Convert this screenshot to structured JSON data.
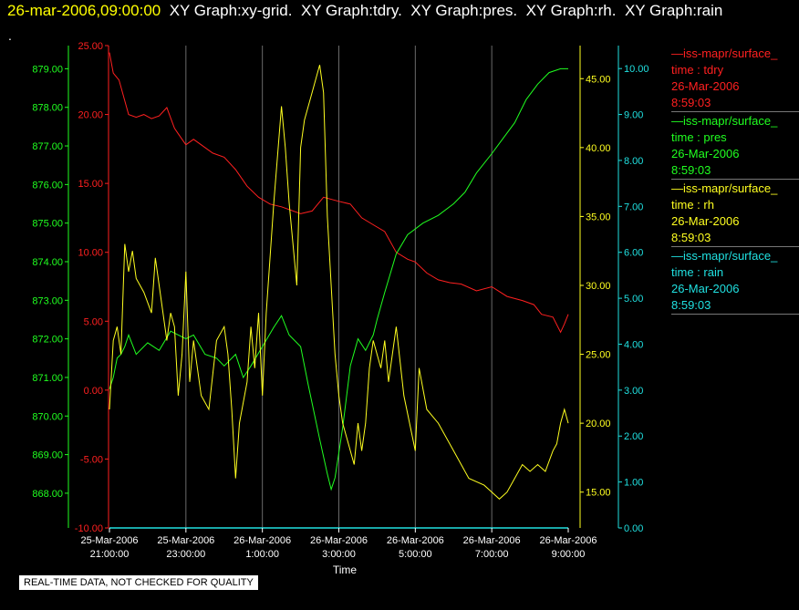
{
  "header": {
    "timestamp": "26-mar-2006,09:00:00",
    "graphs": [
      "XY Graph:xy-grid.",
      "XY Graph:tdry.",
      "XY Graph:pres.",
      "XY Graph:rh.",
      "XY Graph:rain"
    ]
  },
  "dot": ".",
  "disclaimer": "REAL-TIME DATA, NOT CHECKED FOR QUALITY",
  "legend": [
    {
      "line": "iss-mapr/surface_",
      "var": "time : tdry",
      "date": "26-Mar-2006",
      "time": "8:59:03",
      "color": "#ff2020"
    },
    {
      "line": "iss-mapr/surface_",
      "var": "time : pres",
      "date": "26-Mar-2006",
      "time": "8:59:03",
      "color": "#20ff20"
    },
    {
      "line": "iss-mapr/surface_",
      "var": "time : rh",
      "date": "26-Mar-2006",
      "time": "8:59:03",
      "color": "#ffff20"
    },
    {
      "line": "iss-mapr/surface_",
      "var": "time : rain",
      "date": "26-Mar-2006",
      "time": "8:59:03",
      "color": "#20e0e0"
    }
  ],
  "chart_data": {
    "type": "line",
    "xlabel": "Time",
    "x_ticks": [
      {
        "date": "25-Mar-2006",
        "time": "21:00:00",
        "h": 0
      },
      {
        "date": "25-Mar-2006",
        "time": "23:00:00",
        "h": 2
      },
      {
        "date": "26-Mar-2006",
        "time": "1:00:00",
        "h": 4
      },
      {
        "date": "26-Mar-2006",
        "time": "3:00:00",
        "h": 6
      },
      {
        "date": "26-Mar-2006",
        "time": "5:00:00",
        "h": 8
      },
      {
        "date": "26-Mar-2006",
        "time": "7:00:00",
        "h": 10
      },
      {
        "date": "26-Mar-2006",
        "time": "9:00:00",
        "h": 12
      }
    ],
    "xlim": [
      0,
      12
    ],
    "grid": "vertical",
    "axes": {
      "tdry": {
        "color": "#ff2020",
        "ylim": [
          -10,
          25
        ],
        "ticks": [
          "-10.00",
          "-5.00",
          "0.00",
          "5.00",
          "10.00",
          "15.00",
          "20.00",
          "25.00"
        ]
      },
      "pres": {
        "color": "#20ff20",
        "ylim": [
          867.1,
          879.6
        ],
        "ticks": [
          "868.00",
          "869.00",
          "870.00",
          "871.00",
          "872.00",
          "873.00",
          "874.00",
          "875.00",
          "876.00",
          "877.00",
          "878.00",
          "879.00"
        ]
      },
      "rh": {
        "color": "#ffff20",
        "ylim": [
          12.4,
          47.4
        ],
        "ticks": [
          "15.00",
          "20.00",
          "25.00",
          "30.00",
          "35.00",
          "40.00",
          "45.00"
        ]
      },
      "rain": {
        "color": "#20e0e0",
        "ylim": [
          0,
          10.5
        ],
        "ticks": [
          "0.00",
          "1.00",
          "2.00",
          "3.00",
          "4.00",
          "5.00",
          "6.00",
          "7.00",
          "8.00",
          "9.00",
          "10.00"
        ]
      }
    },
    "series": [
      {
        "key": "tdry",
        "x": [
          0,
          0.1,
          0.25,
          0.4,
          0.5,
          0.7,
          0.9,
          1.1,
          1.3,
          1.5,
          1.7,
          1.8,
          2.0,
          2.2,
          2.4,
          2.7,
          3.0,
          3.3,
          3.6,
          3.9,
          4.2,
          4.5,
          5.0,
          5.3,
          5.6,
          6.0,
          6.3,
          6.6,
          6.9,
          7.2,
          7.5,
          7.8,
          8.0,
          8.3,
          8.6,
          8.9,
          9.2,
          9.6,
          10.0,
          10.4,
          10.8,
          11.1,
          11.3,
          11.6,
          11.8,
          11.9,
          12.0
        ],
        "y": [
          24.5,
          23,
          22.5,
          21,
          20,
          19.8,
          20,
          19.7,
          19.9,
          20.5,
          19,
          18.6,
          17.8,
          18.2,
          17.8,
          17.2,
          16.9,
          16,
          14.8,
          14,
          13.5,
          13.3,
          12.8,
          13,
          14,
          13.7,
          13.5,
          12.5,
          12,
          11.5,
          10,
          9.5,
          9.3,
          8.5,
          8,
          7.8,
          7.7,
          7.2,
          7.5,
          6.8,
          6.5,
          6.2,
          5.5,
          5.3,
          4.2,
          4.8,
          5.5
        ]
      },
      {
        "key": "pres",
        "x": [
          0,
          0.1,
          0.2,
          0.3,
          0.4,
          0.5,
          0.7,
          1.0,
          1.3,
          1.6,
          2.0,
          2.2,
          2.5,
          2.8,
          3.0,
          3.3,
          3.5,
          3.7,
          4.0,
          4.3,
          4.5,
          4.7,
          5.0,
          5.2,
          5.5,
          5.7,
          5.8,
          5.9,
          6.1,
          6.3,
          6.5,
          6.7,
          6.9,
          7.0,
          7.2,
          7.5,
          7.8,
          8.2,
          8.6,
          9.0,
          9.3,
          9.6,
          10.0,
          10.3,
          10.6,
          10.9,
          11.2,
          11.5,
          11.8,
          12.0
        ],
        "y": [
          870.7,
          871,
          871.5,
          871.6,
          871.8,
          872.1,
          871.6,
          871.9,
          871.7,
          872.2,
          872,
          872.1,
          871.6,
          871.5,
          871.3,
          871.6,
          871,
          871.3,
          871.8,
          872.3,
          872.6,
          872.1,
          871.8,
          870.8,
          869.4,
          868.5,
          868.1,
          868.4,
          869.7,
          871.3,
          872,
          871.7,
          872.1,
          872.5,
          873.2,
          874.2,
          874.7,
          875,
          875.2,
          875.5,
          875.8,
          876.3,
          876.8,
          877.2,
          877.6,
          878.2,
          878.6,
          878.9,
          879,
          879
        ]
      },
      {
        "key": "rh",
        "x": [
          0,
          0.1,
          0.2,
          0.3,
          0.4,
          0.5,
          0.6,
          0.7,
          0.9,
          1.1,
          1.2,
          1.3,
          1.5,
          1.6,
          1.7,
          1.8,
          1.9,
          2.0,
          2.1,
          2.2,
          2.4,
          2.6,
          2.8,
          3.0,
          3.1,
          3.2,
          3.3,
          3.4,
          3.6,
          3.7,
          3.8,
          3.9,
          4.0,
          4.1,
          4.3,
          4.5,
          4.6,
          4.7,
          4.8,
          4.9,
          5.0,
          5.1,
          5.3,
          5.5,
          5.6,
          5.7,
          5.8,
          5.9,
          6.0,
          6.1,
          6.2,
          6.4,
          6.5,
          6.6,
          6.7,
          6.8,
          6.9,
          7.0,
          7.1,
          7.2,
          7.3,
          7.4,
          7.5,
          7.7,
          8.0,
          8.1,
          8.3,
          8.6,
          9.0,
          9.4,
          9.8,
          10.0,
          10.2,
          10.4,
          10.6,
          10.8,
          11.0,
          11.2,
          11.4,
          11.6,
          11.7,
          11.8,
          11.9,
          12.0
        ],
        "y": [
          21,
          26,
          27,
          25,
          33,
          31,
          32.5,
          30.5,
          29.5,
          28,
          32,
          30,
          26,
          28,
          27,
          22,
          25,
          31,
          23,
          26,
          22,
          21,
          26,
          27,
          25,
          21,
          16,
          20,
          23,
          27,
          24,
          28,
          22,
          28,
          36,
          43,
          40,
          36,
          33,
          30,
          40,
          42,
          44,
          46,
          44,
          35,
          30,
          25,
          22,
          20,
          19,
          17,
          20,
          18,
          20,
          24,
          26,
          25,
          24,
          26,
          23,
          25,
          27,
          22,
          18,
          24,
          21,
          20,
          18,
          16,
          15.5,
          15,
          14.5,
          15,
          16,
          17,
          16.5,
          17,
          16.5,
          18,
          18.5,
          20,
          21,
          20
        ]
      },
      {
        "key": "rain",
        "x": [
          0,
          12
        ],
        "y": [
          0,
          0
        ]
      }
    ]
  }
}
